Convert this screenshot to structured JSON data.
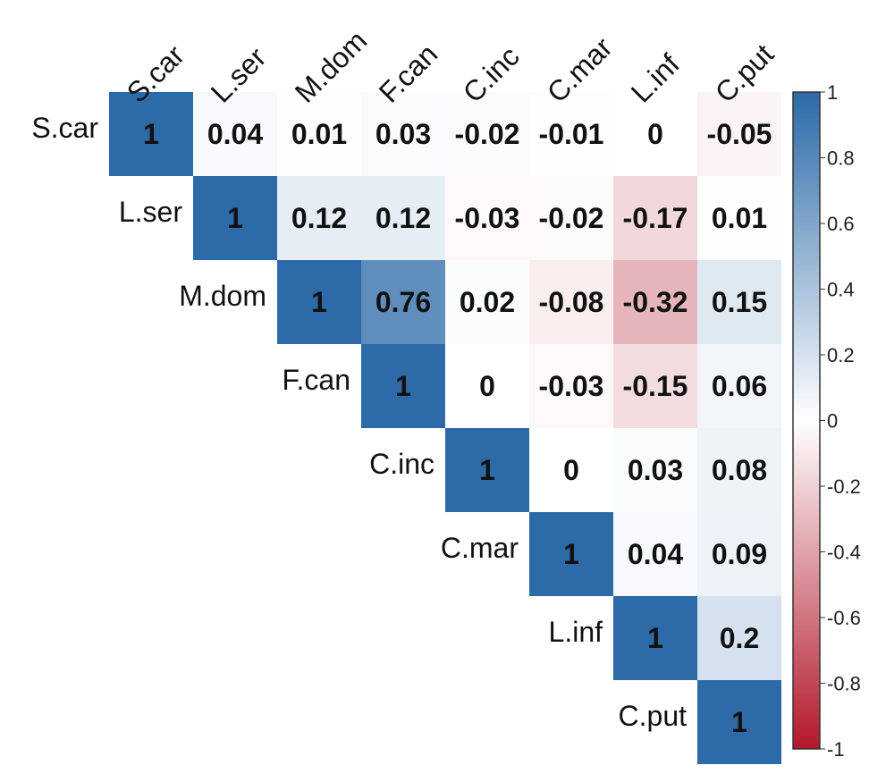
{
  "chart_data": {
    "type": "heatmap",
    "variables": [
      "S.car",
      "L.ser",
      "M.dom",
      "F.can",
      "C.inc",
      "C.mar",
      "L.inf",
      "C.put"
    ],
    "layout": "upper-triangle",
    "matrix": [
      [
        1,
        0.04,
        0.01,
        0.03,
        -0.02,
        -0.01,
        0,
        -0.05
      ],
      [
        null,
        1,
        0.12,
        0.12,
        -0.03,
        -0.02,
        -0.17,
        0.01
      ],
      [
        null,
        null,
        1,
        0.76,
        0.02,
        -0.08,
        -0.32,
        0.15
      ],
      [
        null,
        null,
        null,
        1,
        0,
        -0.03,
        -0.15,
        0.06
      ],
      [
        null,
        null,
        null,
        null,
        1,
        0,
        0.03,
        0.08
      ],
      [
        null,
        null,
        null,
        null,
        null,
        1,
        0.04,
        0.09
      ],
      [
        null,
        null,
        null,
        null,
        null,
        null,
        1,
        0.2
      ],
      [
        null,
        null,
        null,
        null,
        null,
        null,
        null,
        1
      ]
    ],
    "value_labels": [
      [
        "1",
        "0.04",
        "0.01",
        "0.03",
        "-0.02",
        "-0.01",
        "0",
        "-0.05"
      ],
      [
        "",
        "1",
        "0.12",
        "0.12",
        "-0.03",
        "-0.02",
        "-0.17",
        "0.01"
      ],
      [
        "",
        "",
        "1",
        "0.76",
        "0.02",
        "-0.08",
        "-0.32",
        "0.15"
      ],
      [
        "",
        "",
        "",
        "1",
        "0",
        "-0.03",
        "-0.15",
        "0.06"
      ],
      [
        "",
        "",
        "",
        "",
        "1",
        "0",
        "0.03",
        "0.08"
      ],
      [
        "",
        "",
        "",
        "",
        "",
        "1",
        "0.04",
        "0.09"
      ],
      [
        "",
        "",
        "",
        "",
        "",
        "",
        "1",
        "0.2"
      ],
      [
        "",
        "",
        "",
        "",
        "",
        "",
        "",
        "1"
      ]
    ],
    "color_scale": {
      "range": [
        -1,
        1
      ],
      "low_color": "#b2182b",
      "mid_color": "#ffffff",
      "high_color": "#2c6aa8",
      "ticks": [
        1,
        0.8,
        0.6,
        0.4,
        0.2,
        0,
        -0.2,
        -0.4,
        -0.6,
        -0.8,
        -1
      ],
      "tick_labels": [
        "1",
        "0.8",
        "0.6",
        "0.4",
        "0.2",
        "0",
        "-0.2",
        "-0.4",
        "-0.6",
        "-0.8",
        "-1"
      ]
    },
    "legend_placement": "right",
    "grid": false
  }
}
